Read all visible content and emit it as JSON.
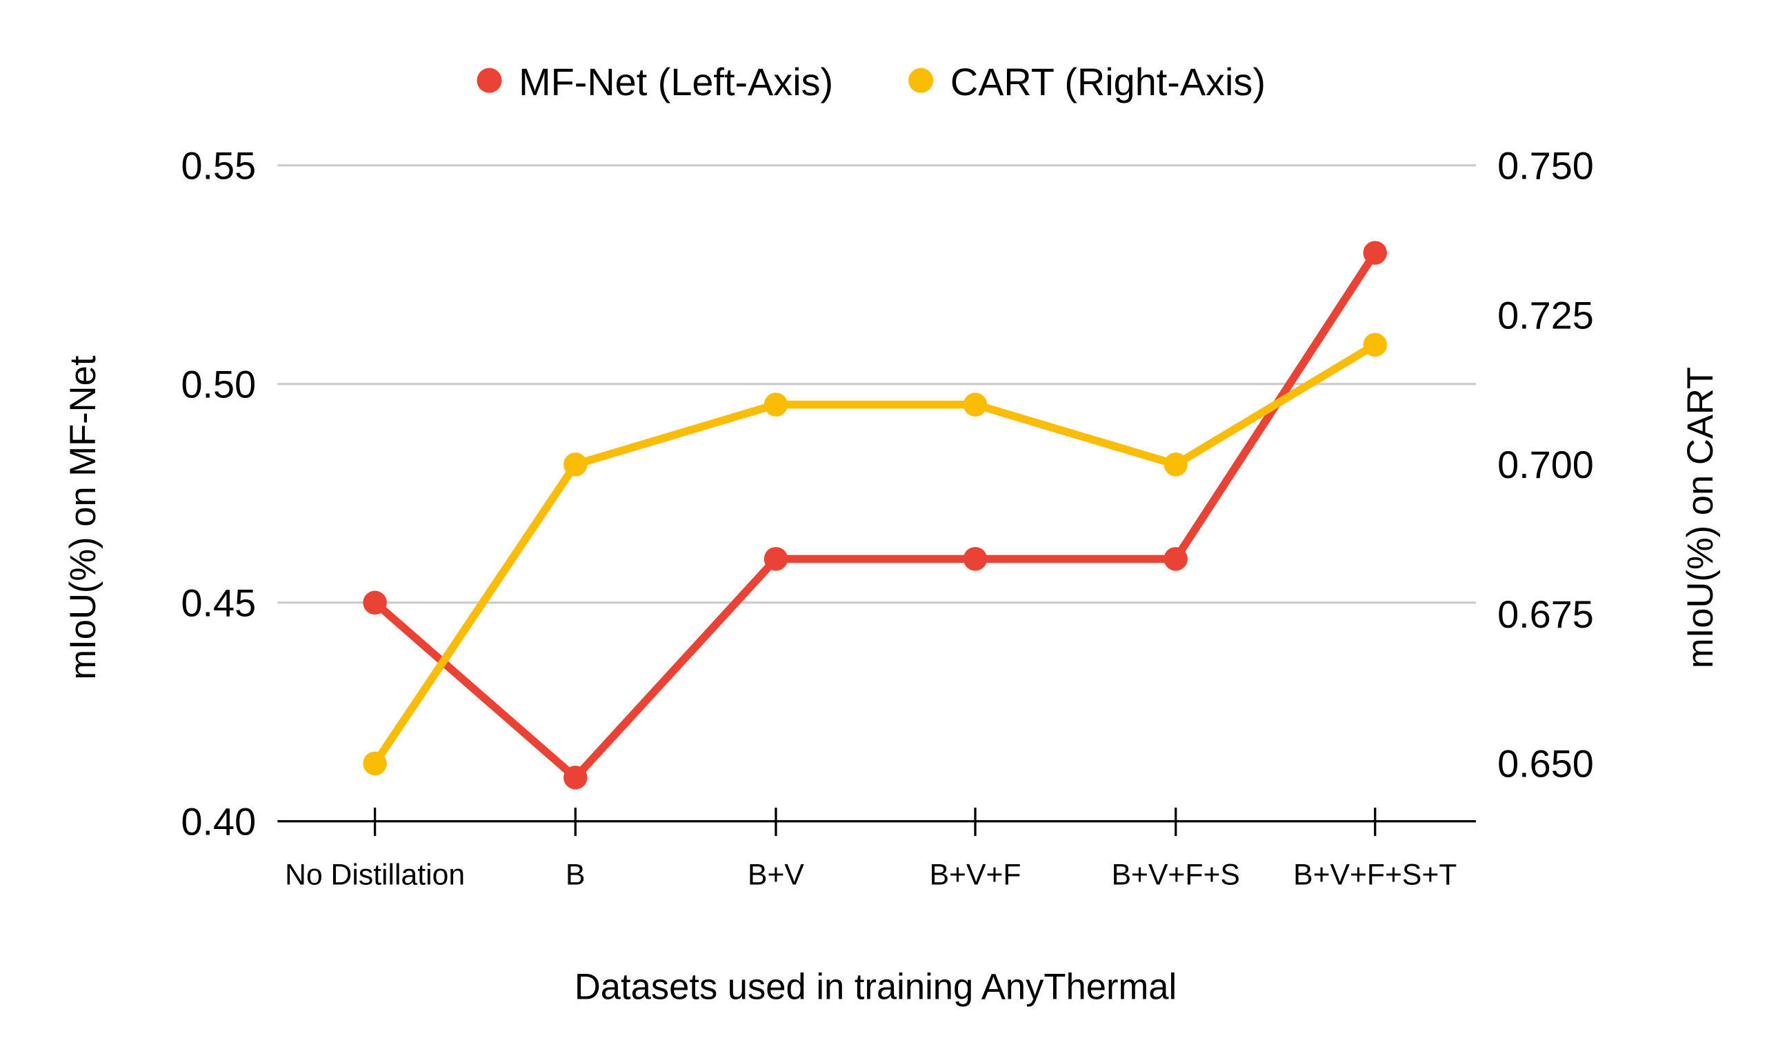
{
  "chart_data": {
    "type": "line",
    "title": "",
    "categories": [
      "No Distillation",
      "B",
      "B+V",
      "B+V+F",
      "B+V+F+S",
      "B+V+F+S+T"
    ],
    "series": [
      {
        "name": "MF-Net (Left-Axis)",
        "axis": "left",
        "color": "#EA4335",
        "values": [
          0.45,
          0.41,
          0.46,
          0.46,
          0.46,
          0.53
        ]
      },
      {
        "name": "CART (Right-Axis)",
        "axis": "right",
        "color": "#FBBC04",
        "values": [
          0.65,
          0.7,
          0.71,
          0.71,
          0.7,
          0.72
        ]
      }
    ],
    "xlabel": "Datasets used in training AnyThermal",
    "ylabel": "mIoU(%) on MF-Net",
    "ylabel_right": "mIoU(%) on CART",
    "ylim": [
      0.4,
      0.55
    ],
    "ylim_right": [
      0.64,
      0.75
    ],
    "yticks": [
      "0.40",
      "0.45",
      "0.50",
      "0.55"
    ],
    "yticks_right": [
      "0.650",
      "0.675",
      "0.700",
      "0.725",
      "0.750"
    ],
    "grid": true,
    "legend_position": "top"
  },
  "legend": {
    "items": [
      {
        "label": "MF-Net (Left-Axis)",
        "color": "#EA4335"
      },
      {
        "label": "CART (Right-Axis)",
        "color": "#FBBC04"
      }
    ]
  }
}
